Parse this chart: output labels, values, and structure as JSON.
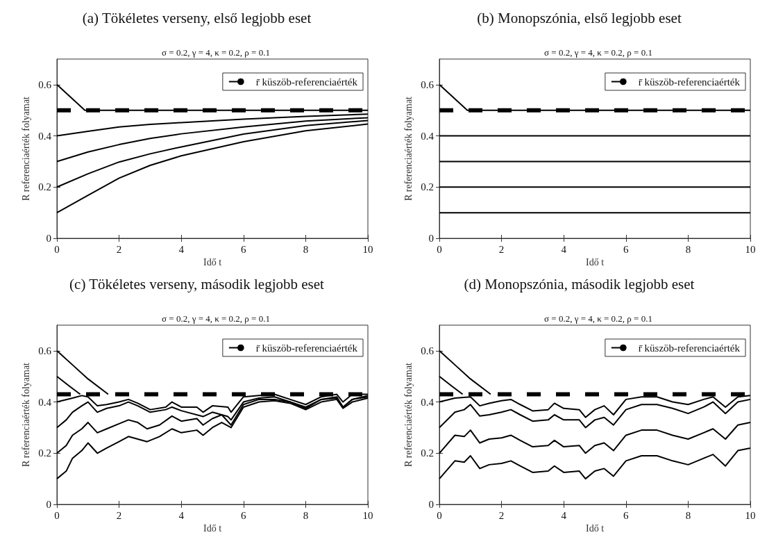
{
  "chart_data": [
    {
      "type": "line",
      "title": "(a) Tökéletes verseny, első legjobb eset",
      "subtitle": "σ = 0.2, γ = 4, κ = 0.2, ρ = 0.1",
      "xlabel": "Idő t",
      "ylabel": "R referenciaérték folyamat",
      "xlim": [
        0,
        10
      ],
      "xticks": [
        0,
        2,
        4,
        6,
        8,
        10
      ],
      "ylim": [
        0,
        0.7
      ],
      "yticks": [
        0,
        0.2,
        0.4,
        0.6
      ],
      "legend": "top right",
      "marker": "none",
      "grid": false,
      "series": [
        {
          "name": "r̄ küszöb-referenciaérték",
          "color": "#000000",
          "line_style": "dashed",
          "x": [
            0,
            10
          ],
          "values": [
            0.5,
            0.5
          ]
        },
        {
          "color": "#000000",
          "x": [
            0,
            0.9,
            10
          ],
          "values": [
            0.6,
            0.5,
            0.5
          ]
        },
        {
          "color": "#000000",
          "x": [
            0,
            1,
            2,
            3,
            4,
            6,
            8,
            10
          ],
          "values": [
            0.4,
            0.418,
            0.435,
            0.445,
            0.452,
            0.465,
            0.476,
            0.485
          ]
        },
        {
          "color": "#000000",
          "x": [
            0,
            1,
            2,
            3,
            4,
            6,
            8,
            10
          ],
          "values": [
            0.3,
            0.337,
            0.366,
            0.39,
            0.408,
            0.435,
            0.458,
            0.471
          ]
        },
        {
          "color": "#000000",
          "x": [
            0,
            1,
            2,
            3,
            4,
            6,
            8,
            10
          ],
          "values": [
            0.2,
            0.252,
            0.298,
            0.33,
            0.357,
            0.407,
            0.44,
            0.46
          ]
        },
        {
          "color": "#000000",
          "x": [
            0,
            1,
            2,
            3,
            4,
            6,
            8,
            10
          ],
          "values": [
            0.1,
            0.168,
            0.235,
            0.285,
            0.322,
            0.377,
            0.42,
            0.446
          ]
        }
      ]
    },
    {
      "type": "line",
      "title": "(b) Monopszónia, első legjobb eset",
      "subtitle": "σ = 0.2, γ = 4, κ = 0.2, ρ = 0.1",
      "xlabel": "Idő t",
      "ylabel": "R referenciaérték folyamat",
      "xlim": [
        0,
        10
      ],
      "xticks": [
        0,
        2,
        4,
        6,
        8,
        10
      ],
      "ylim": [
        0,
        0.7
      ],
      "yticks": [
        0,
        0.2,
        0.4,
        0.6
      ],
      "legend": "top right",
      "marker": "none",
      "grid": false,
      "series": [
        {
          "name": "r̄ küszöb-referenciaérték",
          "color": "#000000",
          "line_style": "dashed",
          "x": [
            0,
            10
          ],
          "values": [
            0.5,
            0.5
          ]
        },
        {
          "color": "#000000",
          "x": [
            0,
            0.9,
            10
          ],
          "values": [
            0.6,
            0.5,
            0.5
          ]
        },
        {
          "color": "#000000",
          "x": [
            0,
            10
          ],
          "values": [
            0.4,
            0.4
          ]
        },
        {
          "color": "#000000",
          "x": [
            0,
            10
          ],
          "values": [
            0.3,
            0.3
          ]
        },
        {
          "color": "#000000",
          "x": [
            0,
            10
          ],
          "values": [
            0.2,
            0.2
          ]
        },
        {
          "color": "#000000",
          "x": [
            0,
            10
          ],
          "values": [
            0.1,
            0.1
          ]
        }
      ]
    },
    {
      "type": "line",
      "title": "(c) Tökéletes verseny, második legjobb eset",
      "subtitle": "σ = 0.2, γ = 4, κ = 0.2, ρ = 0.1",
      "xlabel": "Idő t",
      "ylabel": "R referenciaérték folyamat",
      "xlim": [
        0,
        10
      ],
      "xticks": [
        0,
        2,
        4,
        6,
        8,
        10
      ],
      "ylim": [
        0,
        0.7
      ],
      "yticks": [
        0,
        0.2,
        0.4,
        0.6
      ],
      "legend": "top right",
      "marker": "none",
      "grid": false,
      "series": [
        {
          "name": "r̄ küszöb-referenciaérték",
          "color": "#000000",
          "line_style": "dashed",
          "x": [
            0,
            10
          ],
          "values": [
            0.43,
            0.43
          ]
        },
        {
          "color": "#000000",
          "x": [
            0,
            0.5,
            1,
            1.65
          ],
          "values": [
            0.6,
            0.545,
            0.49,
            0.43
          ]
        },
        {
          "color": "#000000",
          "x": [
            0,
            0.4,
            0.75
          ],
          "values": [
            0.5,
            0.462,
            0.43
          ]
        },
        {
          "color": "#000000",
          "x": [
            0,
            0.5,
            0.8,
            1,
            1.3,
            1.6,
            2,
            2.3,
            2.6,
            3,
            3.5,
            3.7,
            4,
            4.5,
            4.7,
            5,
            5.5,
            5.6,
            6,
            6.5,
            7,
            7.5,
            8,
            8.5,
            9,
            9.2,
            9.5,
            10
          ],
          "values": [
            0.4,
            0.415,
            0.425,
            0.42,
            0.385,
            0.39,
            0.4,
            0.41,
            0.395,
            0.37,
            0.38,
            0.4,
            0.38,
            0.38,
            0.36,
            0.385,
            0.38,
            0.36,
            0.42,
            0.425,
            0.43,
            0.41,
            0.39,
            0.42,
            0.43,
            0.4,
            0.43,
            0.43
          ]
        },
        {
          "color": "#000000",
          "x": [
            0,
            0.3,
            0.5,
            0.8,
            1,
            1.3,
            1.6,
            2,
            2.3,
            2.6,
            3,
            3.5,
            3.7,
            4,
            4.7,
            5,
            5.5,
            5.6,
            6,
            6.5,
            7,
            7.5,
            8,
            8.5,
            9,
            9.2,
            9.5,
            10
          ],
          "values": [
            0.3,
            0.33,
            0.36,
            0.385,
            0.4,
            0.36,
            0.375,
            0.385,
            0.4,
            0.385,
            0.36,
            0.37,
            0.38,
            0.366,
            0.343,
            0.36,
            0.343,
            0.33,
            0.4,
            0.415,
            0.42,
            0.4,
            0.375,
            0.41,
            0.42,
            0.38,
            0.41,
            0.425
          ]
        },
        {
          "color": "#000000",
          "x": [
            0,
            0.3,
            0.5,
            0.8,
            1,
            1.3,
            1.6,
            2,
            2.3,
            2.6,
            2.9,
            3.3,
            3.7,
            4,
            4.5,
            4.7,
            5,
            5.3,
            5.6,
            6,
            6.5,
            7,
            7.5,
            8,
            8.5,
            9,
            9.2,
            9.5,
            10
          ],
          "values": [
            0.2,
            0.23,
            0.27,
            0.295,
            0.32,
            0.28,
            0.295,
            0.315,
            0.33,
            0.32,
            0.295,
            0.31,
            0.345,
            0.325,
            0.335,
            0.31,
            0.335,
            0.35,
            0.31,
            0.39,
            0.41,
            0.41,
            0.4,
            0.38,
            0.41,
            0.415,
            0.38,
            0.41,
            0.42
          ]
        },
        {
          "color": "#000000",
          "x": [
            0,
            0.3,
            0.5,
            0.8,
            1,
            1.3,
            1.6,
            2,
            2.3,
            2.6,
            2.9,
            3.3,
            3.7,
            4,
            4.5,
            4.7,
            5,
            5.3,
            5.6,
            6,
            6.5,
            7,
            7.5,
            8,
            8.5,
            9,
            9.2,
            9.5,
            10
          ],
          "values": [
            0.1,
            0.13,
            0.18,
            0.21,
            0.24,
            0.2,
            0.22,
            0.245,
            0.265,
            0.255,
            0.245,
            0.265,
            0.295,
            0.28,
            0.29,
            0.27,
            0.3,
            0.32,
            0.3,
            0.38,
            0.4,
            0.405,
            0.395,
            0.37,
            0.4,
            0.41,
            0.375,
            0.4,
            0.415
          ]
        }
      ]
    },
    {
      "type": "line",
      "title": "(d) Monopszónia, második legjobb eset",
      "subtitle": "σ = 0.2, γ = 4, κ = 0.2, ρ = 0.1",
      "xlabel": "Idő t",
      "ylabel": "R referenciaérték folyamat",
      "xlim": [
        0,
        10
      ],
      "xticks": [
        0,
        2,
        4,
        6,
        8,
        10
      ],
      "ylim": [
        0,
        0.7
      ],
      "yticks": [
        0,
        0.2,
        0.4,
        0.6
      ],
      "legend": "top right",
      "marker": "none",
      "grid": false,
      "series": [
        {
          "name": "r̄ küszöb-referenciaérték",
          "color": "#000000",
          "line_style": "dashed",
          "x": [
            0,
            10
          ],
          "values": [
            0.43,
            0.43
          ]
        },
        {
          "color": "#000000",
          "x": [
            0,
            0.5,
            1,
            1.65
          ],
          "values": [
            0.6,
            0.545,
            0.49,
            0.43
          ]
        },
        {
          "color": "#000000",
          "x": [
            0,
            0.4,
            0.75
          ],
          "values": [
            0.5,
            0.462,
            0.43
          ]
        },
        {
          "color": "#000000",
          "x": [
            0,
            0.5,
            1,
            1.3,
            1.6,
            2,
            2.3,
            2.6,
            3,
            3.5,
            3.7,
            4,
            4.5,
            4.7,
            5,
            5.3,
            5.6,
            6,
            6.5,
            7,
            7.5,
            8,
            8.5,
            8.8,
            9.2,
            9.6,
            10
          ],
          "values": [
            0.4,
            0.415,
            0.42,
            0.385,
            0.395,
            0.405,
            0.41,
            0.39,
            0.365,
            0.37,
            0.395,
            0.375,
            0.37,
            0.34,
            0.37,
            0.385,
            0.35,
            0.41,
            0.42,
            0.42,
            0.4,
            0.39,
            0.41,
            0.42,
            0.38,
            0.42,
            0.425
          ]
        },
        {
          "color": "#000000",
          "x": [
            0,
            0.5,
            0.8,
            1,
            1.3,
            1.6,
            2,
            2.3,
            2.6,
            3,
            3.5,
            3.7,
            4,
            4.5,
            4.7,
            5,
            5.3,
            5.6,
            6,
            6.5,
            7,
            7.5,
            8,
            8.5,
            8.8,
            9.2,
            9.6,
            10
          ],
          "values": [
            0.3,
            0.36,
            0.37,
            0.39,
            0.345,
            0.35,
            0.36,
            0.37,
            0.35,
            0.325,
            0.33,
            0.35,
            0.33,
            0.33,
            0.3,
            0.33,
            0.34,
            0.31,
            0.37,
            0.39,
            0.39,
            0.375,
            0.355,
            0.38,
            0.4,
            0.355,
            0.4,
            0.41
          ]
        },
        {
          "color": "#000000",
          "x": [
            0,
            0.5,
            0.8,
            1,
            1.3,
            1.6,
            2,
            2.3,
            2.6,
            3,
            3.5,
            3.7,
            4,
            4.5,
            4.7,
            5,
            5.3,
            5.6,
            6,
            6.5,
            7,
            7.5,
            8,
            8.5,
            8.8,
            9.2,
            9.6,
            10
          ],
          "values": [
            0.2,
            0.27,
            0.265,
            0.29,
            0.24,
            0.255,
            0.26,
            0.27,
            0.25,
            0.225,
            0.23,
            0.25,
            0.225,
            0.23,
            0.2,
            0.23,
            0.24,
            0.21,
            0.27,
            0.29,
            0.29,
            0.27,
            0.255,
            0.28,
            0.295,
            0.255,
            0.31,
            0.32
          ]
        },
        {
          "color": "#000000",
          "x": [
            0,
            0.5,
            0.8,
            1,
            1.3,
            1.6,
            2,
            2.3,
            2.6,
            3,
            3.5,
            3.7,
            4,
            4.5,
            4.7,
            5,
            5.3,
            5.6,
            6,
            6.5,
            7,
            7.5,
            8,
            8.5,
            8.8,
            9.2,
            9.6,
            10
          ],
          "values": [
            0.1,
            0.17,
            0.165,
            0.19,
            0.14,
            0.155,
            0.16,
            0.17,
            0.15,
            0.125,
            0.13,
            0.15,
            0.125,
            0.13,
            0.1,
            0.13,
            0.14,
            0.11,
            0.17,
            0.19,
            0.19,
            0.17,
            0.155,
            0.18,
            0.195,
            0.15,
            0.21,
            0.22
          ]
        }
      ]
    }
  ]
}
